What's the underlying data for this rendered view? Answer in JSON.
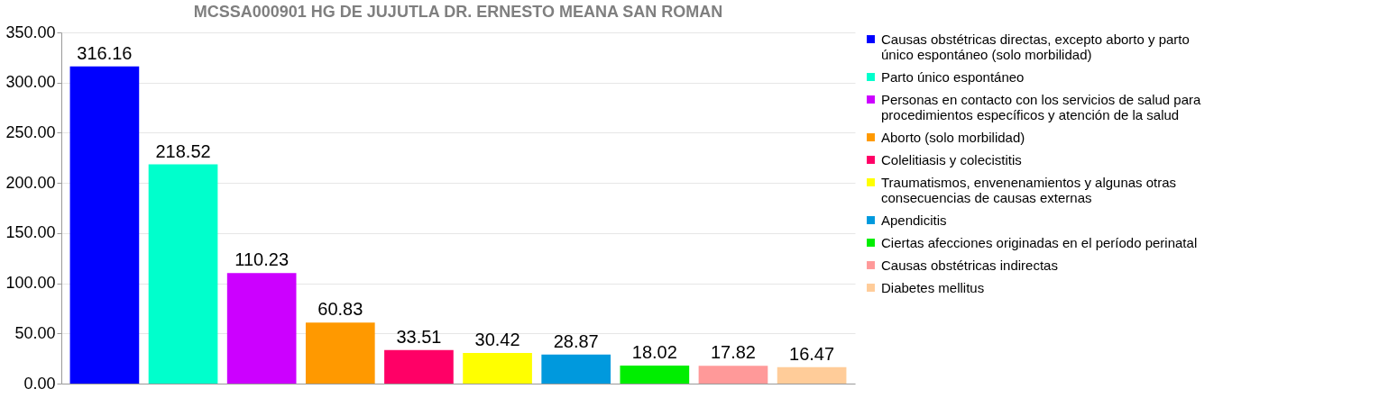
{
  "chart_data": {
    "type": "bar",
    "title": "MCSSA000901 HG DE JUJUTLA DR. ERNESTO MEANA SAN ROMAN",
    "categories": [
      null
    ],
    "series": [
      {
        "name": "Causas obstétricas directas, excepto aborto y parto único espontáneo (solo morbilidad)",
        "color": "#0000ff",
        "values": [
          316.16
        ]
      },
      {
        "name": "Parto único espontáneo",
        "color": "#00ffcc",
        "values": [
          218.52
        ]
      },
      {
        "name": "Personas en contacto con los servicios de salud para procedimientos específicos y atención de la salud",
        "color": "#cc00ff",
        "values": [
          110.23
        ]
      },
      {
        "name": "Aborto (solo morbilidad)",
        "color": "#ff9900",
        "values": [
          60.83
        ]
      },
      {
        "name": "Colelitiasis y colecistitis",
        "color": "#ff0066",
        "values": [
          33.51
        ]
      },
      {
        "name": "Traumatismos, envenenamientos y algunas otras consecuencias de causas externas",
        "color": "#ffff00",
        "values": [
          30.42
        ]
      },
      {
        "name": "Apendicitis",
        "color": "#0099dd",
        "values": [
          28.87
        ]
      },
      {
        "name": "Ciertas afecciones originadas en el período perinatal",
        "color": "#00ee00",
        "values": [
          18.02
        ]
      },
      {
        "name": "Causas obstétricas indirectas",
        "color": "#ff9999",
        "values": [
          17.82
        ]
      },
      {
        "name": "Diabetes mellitus",
        "color": "#ffcc99",
        "values": [
          16.47
        ]
      }
    ],
    "ylim": [
      0,
      350
    ],
    "yticks": [
      {
        "value": 0,
        "label": "0.00"
      },
      {
        "value": 50,
        "label": "50.00"
      },
      {
        "value": 100,
        "label": "100.00"
      },
      {
        "value": 150,
        "label": "150.00"
      },
      {
        "value": 200,
        "label": "200.00"
      },
      {
        "value": 250,
        "label": "250.00"
      },
      {
        "value": 300,
        "label": "300.00"
      },
      {
        "value": 350,
        "label": "350.00"
      }
    ],
    "grid": "y",
    "legend": "right",
    "tick_labels": "y",
    "data_labels": true
  }
}
